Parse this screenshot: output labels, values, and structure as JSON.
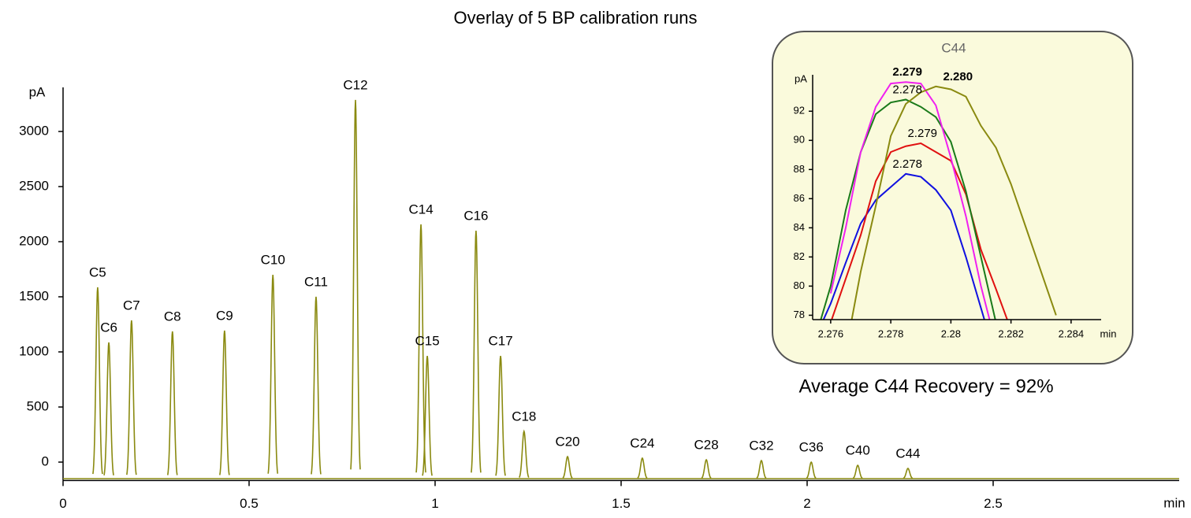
{
  "chart_data": [
    {
      "type": "chromatogram",
      "title": "Overlay of 5 BP calibration runs",
      "x_label": "min",
      "y_label": "pA",
      "color": "#8a8a10",
      "xlim": [
        0,
        3
      ],
      "xticks": [
        0,
        0.5,
        1,
        1.5,
        2,
        2.5
      ],
      "ylim": [
        -160,
        3400
      ],
      "yticks": [
        0,
        500,
        1000,
        1500,
        2000,
        2500,
        3000
      ],
      "baseline": -150,
      "categories": [
        "C5",
        "C6",
        "C7",
        "C8",
        "C9",
        "C10",
        "C11",
        "C12",
        "C14",
        "C15",
        "C16",
        "C17",
        "C18",
        "C20",
        "C24",
        "C28",
        "C32",
        "C36",
        "C40",
        "C44"
      ],
      "x": [
        0.093,
        0.123,
        0.184,
        0.294,
        0.434,
        0.564,
        0.68,
        0.786,
        0.962,
        0.979,
        1.11,
        1.176,
        1.239,
        1.356,
        1.557,
        1.729,
        1.877,
        2.011,
        2.136,
        2.271
      ],
      "values": [
        1586,
        1086,
        1286,
        1186,
        1193,
        1700,
        1500,
        3286,
        2157,
        964,
        2100,
        964,
        279,
        50,
        36,
        21,
        14,
        0,
        -29,
        -57
      ],
      "annotation": "Average C44 Recovery = 92%"
    },
    {
      "type": "line",
      "title": "C44",
      "x_label": "min",
      "y_label": "pA",
      "xlim": [
        2.2754,
        2.285
      ],
      "xticks": [
        2.276,
        2.278,
        2.28,
        2.282,
        2.284
      ],
      "ylim": [
        77.7,
        94.5
      ],
      "yticks": [
        78,
        80,
        82,
        84,
        86,
        88,
        90,
        92
      ],
      "x": [
        2.275,
        2.2755,
        2.276,
        2.2765,
        2.277,
        2.2775,
        2.278,
        2.2785,
        2.279,
        2.2795,
        2.28,
        2.2805,
        2.281,
        2.2815,
        2.282,
        2.2825,
        2.283,
        2.2835,
        2.284,
        2.2845
      ],
      "series": [
        {
          "color": "#1010e0",
          "apex": 2.278,
          "values": [
            null,
            76.5,
            78.8,
            81.6,
            84.3,
            85.9,
            86.8,
            87.7,
            87.5,
            86.6,
            85.2,
            82.0,
            78.5,
            75,
            null,
            null,
            null,
            null,
            null,
            null
          ]
        },
        {
          "color": "#e01010",
          "apex": 2.279,
          "values": [
            null,
            null,
            77.5,
            80.5,
            83.5,
            87.2,
            89.2,
            89.6,
            89.8,
            89.2,
            88.6,
            86.3,
            82.5,
            79.8,
            77,
            null,
            null,
            null,
            null,
            null
          ]
        },
        {
          "color": "#1a7a1a",
          "apex": 2.278,
          "values": [
            null,
            76.5,
            80,
            85.2,
            89.2,
            91.8,
            92.6,
            92.8,
            92.3,
            91.6,
            89.9,
            86.5,
            82,
            77.5,
            null,
            null,
            null,
            null,
            null,
            null
          ]
        },
        {
          "color": "#f020f0",
          "apex": 2.279,
          "values": [
            null,
            null,
            79.5,
            84,
            89.2,
            92.3,
            93.9,
            94.0,
            93.9,
            92.4,
            88.8,
            84.8,
            80,
            76,
            null,
            null,
            null,
            null,
            null,
            null
          ]
        },
        {
          "color": "#8a8a10",
          "apex": {
            "value": 2.28,
            "label": "2.280"
          },
          "values": [
            null,
            null,
            null,
            75.5,
            81,
            85.5,
            90.3,
            92.5,
            93.3,
            93.7,
            93.5,
            93.0,
            91.0,
            89.5,
            87,
            84,
            81,
            78,
            null,
            null
          ]
        }
      ]
    }
  ]
}
